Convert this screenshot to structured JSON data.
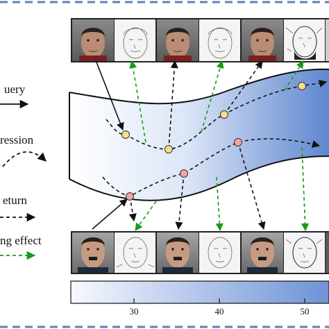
{
  "legend": {
    "query_label": "uery",
    "regression_label": "ression",
    "return_label": "eturn",
    "effect_label": "ng effect"
  },
  "colorbar": {
    "ticks": [
      "30",
      "40",
      "50"
    ],
    "colors": {
      "low": "#f3f6fd",
      "high": "#6e92d6"
    }
  },
  "style": {
    "border_color": "#5f7fb5",
    "query_arrow": "#111111",
    "regression_arrow": "#111111",
    "return_arrow": "#111111",
    "effect_arrow": "#1a9a1a",
    "yellow_node": "#f7dc8a",
    "red_node": "#f2a3a3"
  }
}
